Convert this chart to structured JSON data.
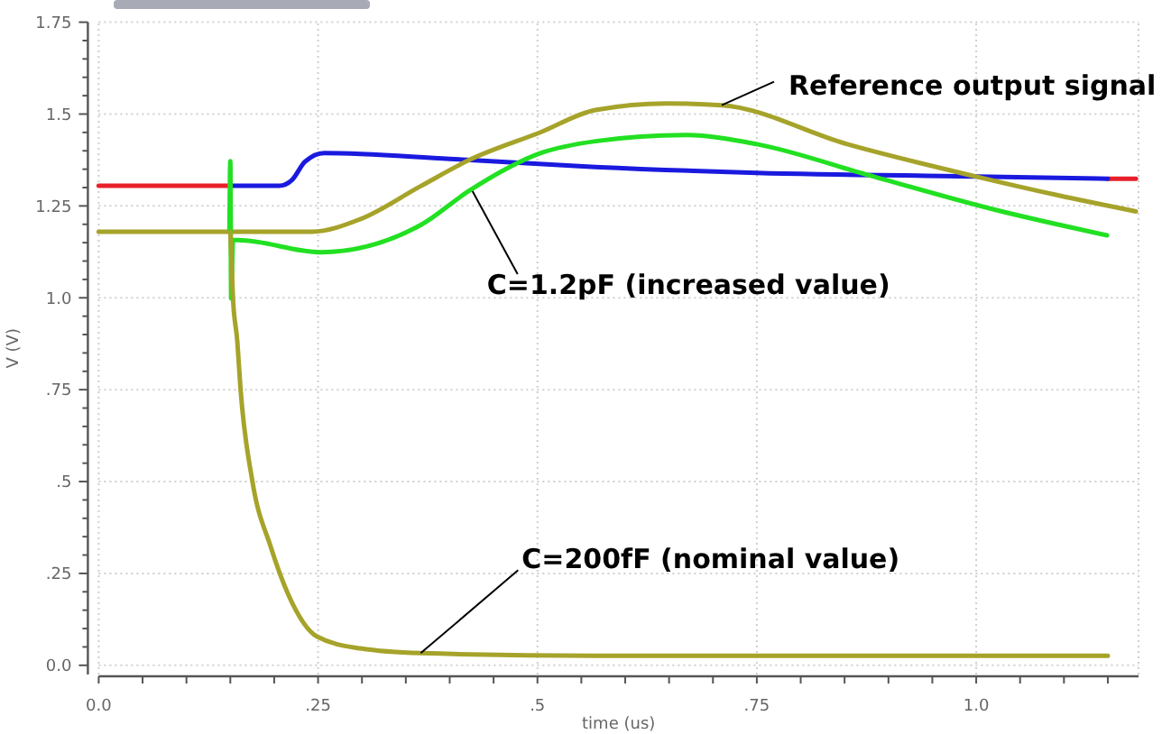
{
  "chart_data": {
    "type": "line",
    "xlabel": "time (us)",
    "ylabel": "V (V)",
    "xlim": [
      0,
      1.185
    ],
    "ylim": [
      -0.025,
      1.75
    ],
    "xticks": [
      {
        "value": 0,
        "label": "0.0"
      },
      {
        "value": 0.05,
        "label": null
      },
      {
        "value": 0.1,
        "label": null
      },
      {
        "value": 0.15,
        "label": null
      },
      {
        "value": 0.2,
        "label": null
      },
      {
        "value": 0.25,
        "label": ".25"
      },
      {
        "value": 0.3,
        "label": null
      },
      {
        "value": 0.35,
        "label": null
      },
      {
        "value": 0.4,
        "label": null
      },
      {
        "value": 0.45,
        "label": null
      },
      {
        "value": 0.5,
        "label": ".5"
      },
      {
        "value": 0.55,
        "label": null
      },
      {
        "value": 0.6,
        "label": null
      },
      {
        "value": 0.65,
        "label": null
      },
      {
        "value": 0.7,
        "label": null
      },
      {
        "value": 0.75,
        "label": ".75"
      },
      {
        "value": 0.8,
        "label": null
      },
      {
        "value": 0.85,
        "label": null
      },
      {
        "value": 0.9,
        "label": null
      },
      {
        "value": 0.95,
        "label": null
      },
      {
        "value": 1.0,
        "label": "1.0"
      },
      {
        "value": 1.05,
        "label": null
      },
      {
        "value": 1.1,
        "label": null
      },
      {
        "value": 1.15,
        "label": null
      }
    ],
    "yticks": [
      {
        "value": 0,
        "label": "0.0"
      },
      {
        "value": 0.05,
        "label": null
      },
      {
        "value": 0.1,
        "label": null
      },
      {
        "value": 0.15,
        "label": null
      },
      {
        "value": 0.2,
        "label": null
      },
      {
        "value": 0.25,
        "label": ".25"
      },
      {
        "value": 0.3,
        "label": null
      },
      {
        "value": 0.35,
        "label": null
      },
      {
        "value": 0.4,
        "label": null
      },
      {
        "value": 0.45,
        "label": null
      },
      {
        "value": 0.5,
        "label": ".5"
      },
      {
        "value": 0.55,
        "label": null
      },
      {
        "value": 0.6,
        "label": null
      },
      {
        "value": 0.65,
        "label": null
      },
      {
        "value": 0.7,
        "label": null
      },
      {
        "value": 0.75,
        "label": ".75"
      },
      {
        "value": 0.8,
        "label": null
      },
      {
        "value": 0.85,
        "label": null
      },
      {
        "value": 0.9,
        "label": null
      },
      {
        "value": 0.95,
        "label": null
      },
      {
        "value": 1.0,
        "label": "1.0"
      },
      {
        "value": 1.05,
        "label": null
      },
      {
        "value": 1.1,
        "label": null
      },
      {
        "value": 1.15,
        "label": null
      },
      {
        "value": 1.2,
        "label": null
      },
      {
        "value": 1.25,
        "label": "1.25"
      },
      {
        "value": 1.3,
        "label": null
      },
      {
        "value": 1.35,
        "label": null
      },
      {
        "value": 1.4,
        "label": null
      },
      {
        "value": 1.45,
        "label": null
      },
      {
        "value": 1.5,
        "label": "1.5"
      },
      {
        "value": 1.55,
        "label": null
      },
      {
        "value": 1.6,
        "label": null
      },
      {
        "value": 1.65,
        "label": null
      },
      {
        "value": 1.7,
        "label": null
      },
      {
        "value": 1.75,
        "label": "1.75"
      }
    ],
    "grid": true,
    "line_style": "solid",
    "series": [
      {
        "color": "#e8202a",
        "x": [
          0,
          0.15
        ],
        "values": [
          1.305,
          1.305
        ]
      },
      {
        "color": "#e8202a",
        "x": [
          1.15,
          1.182
        ],
        "values": [
          1.324,
          1.324
        ]
      },
      {
        "color": "#1a1adf",
        "x": [
          0.15,
          0.206,
          0.22,
          0.235,
          0.257,
          0.4,
          0.566,
          0.75,
          1.0,
          1.15
        ],
        "values": [
          1.305,
          1.305,
          1.32,
          1.37,
          1.394,
          1.378,
          1.356,
          1.34,
          1.33,
          1.324
        ]
      },
      {
        "color": "#a6a32a",
        "x": [
          0,
          0.243,
          0.298,
          0.367,
          0.424,
          0.504,
          0.566,
          0.648,
          0.71,
          0.853,
          0.998,
          1.093,
          1.182
        ],
        "values": [
          1.18,
          1.18,
          1.214,
          1.304,
          1.377,
          1.451,
          1.511,
          1.529,
          1.524,
          1.418,
          1.331,
          1.279,
          1.235
        ]
      },
      {
        "color": "#22e022",
        "x": [
          0.149,
          0.15,
          0.151,
          0.153,
          0.159,
          0.253,
          0.367,
          0.422,
          0.504,
          0.566,
          0.668,
          0.75,
          0.874,
          1.024,
          1.149
        ],
        "values": [
          1.18,
          1.372,
          0.998,
          1.157,
          1.157,
          1.124,
          1.198,
          1.291,
          1.394,
          1.426,
          1.443,
          1.418,
          1.336,
          1.238,
          1.17
        ]
      },
      {
        "color": "#a6a32a",
        "x": [
          0.15,
          0.153,
          0.158,
          0.1615,
          0.175,
          0.196,
          0.216,
          0.249,
          0.298,
          0.367,
          0.566,
          1.15
        ],
        "values": [
          1.18,
          1.0,
          0.88,
          0.756,
          0.503,
          0.323,
          0.193,
          0.078,
          0.046,
          0.033,
          0.026,
          0.026
        ]
      }
    ],
    "annotations": [
      {
        "text": "Reference output signal",
        "x": 0.71,
        "y": 1.524
      },
      {
        "text": "C=1.2pF (increased value)",
        "x": 0.426,
        "y": 1.29
      },
      {
        "text": "C=200fF (nominal value)",
        "x": 0.367,
        "y": 0.033
      }
    ]
  }
}
